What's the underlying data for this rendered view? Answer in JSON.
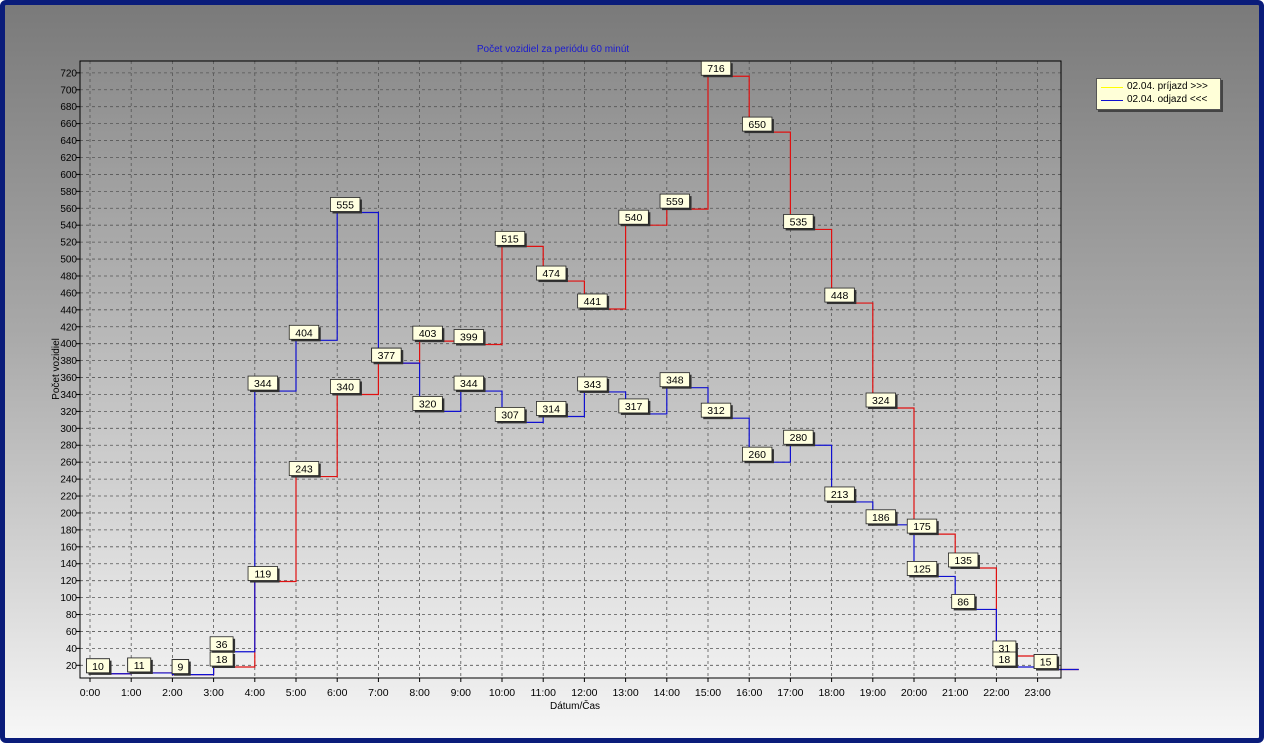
{
  "chart_data": {
    "type": "line",
    "step": true,
    "title": "Počet vozidiel za periódu 60 minút",
    "xlabel": "Dátum/Čas",
    "ylabel": "Počet vozidiel",
    "categories": [
      "0:00",
      "1:00",
      "2:00",
      "3:00",
      "4:00",
      "5:00",
      "6:00",
      "7:00",
      "8:00",
      "9:00",
      "10:00",
      "11:00",
      "12:00",
      "13:00",
      "14:00",
      "15:00",
      "16:00",
      "17:00",
      "18:00",
      "19:00",
      "20:00",
      "21:00",
      "22:00",
      "23:00"
    ],
    "yticks": [
      20,
      40,
      60,
      80,
      100,
      120,
      140,
      160,
      180,
      200,
      220,
      240,
      260,
      280,
      300,
      320,
      340,
      360,
      380,
      400,
      420,
      440,
      460,
      480,
      500,
      520,
      540,
      560,
      580,
      600,
      620,
      640,
      660,
      680,
      700,
      720
    ],
    "ylim": [
      5,
      734
    ],
    "grid": true,
    "legend_position": "top-right",
    "series": [
      {
        "name": "02.04.  príjazd >>>",
        "color": "#e01010",
        "legend_color": "#ffff00",
        "values": [
          10,
          11,
          9,
          18,
          119,
          243,
          340,
          377,
          403,
          399,
          515,
          474,
          441,
          540,
          559,
          716,
          650,
          535,
          448,
          324,
          175,
          135,
          31,
          15
        ]
      },
      {
        "name": "02.04.  odjazd <<<",
        "color": "#1010d0",
        "legend_color": "#1010d0",
        "values": [
          10,
          11,
          9,
          36,
          344,
          404,
          555,
          377,
          320,
          344,
          307,
          314,
          343,
          317,
          348,
          312,
          260,
          280,
          213,
          186,
          125,
          86,
          18,
          15
        ]
      }
    ]
  },
  "colors": {
    "frame_border": "#0a1c7a",
    "plot_background_top": "#8c8c8c",
    "plot_background_bottom": "#f0f0f0",
    "grid_line": "#555555",
    "title_color": "#1a1ad0",
    "label_box": "#ffffe0"
  }
}
